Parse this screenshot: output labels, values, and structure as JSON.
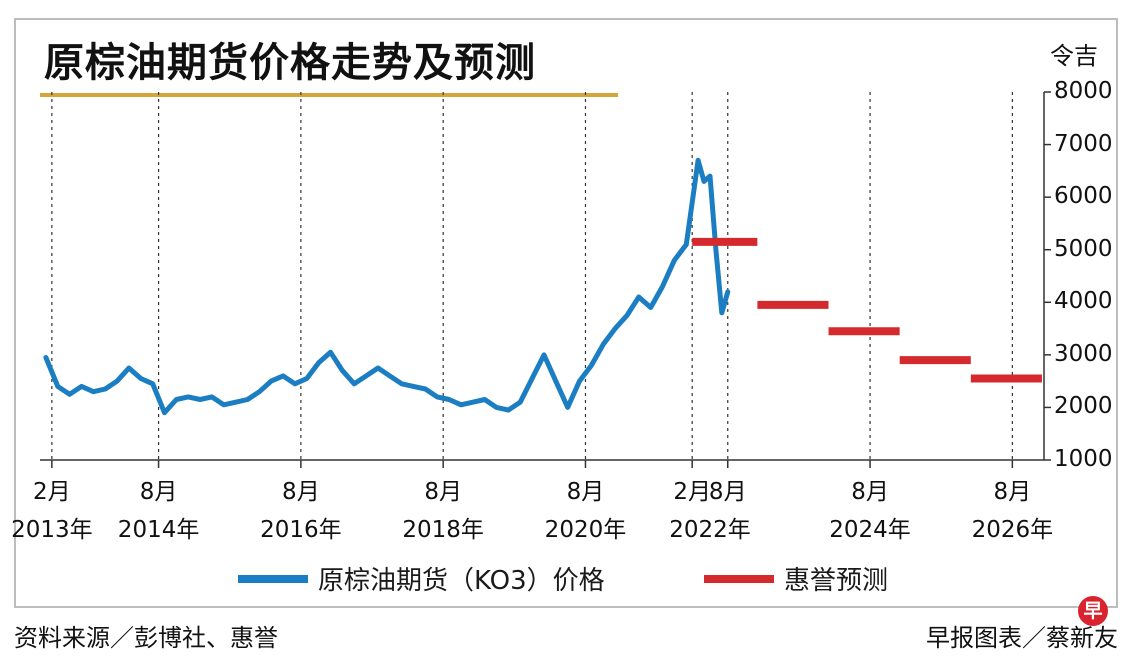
{
  "chart_data": {
    "type": "line",
    "title": "原棕油期货价格走势及预测",
    "unit": "令吉",
    "ylim": [
      1000,
      8000
    ],
    "yticks": [
      1000,
      2000,
      3000,
      4000,
      5000,
      6000,
      7000,
      8000
    ],
    "ytick_labels": [
      "1000",
      "2000",
      "3000",
      "4000",
      "5000",
      "6000",
      "7000",
      "8000"
    ],
    "xlim": [
      "2012-12",
      "2027-01"
    ],
    "xticks": [
      {
        "date": "2013-02",
        "top": "2月",
        "bottom": "2013年"
      },
      {
        "date": "2014-08",
        "top": "8月",
        "bottom": "2014年"
      },
      {
        "date": "2016-08",
        "top": "8月",
        "bottom": "2016年"
      },
      {
        "date": "2018-08",
        "top": "8月",
        "bottom": "2018年"
      },
      {
        "date": "2020-08",
        "top": "8月",
        "bottom": "2020年"
      },
      {
        "date": "2022-02",
        "top": "2月",
        "bottom": ""
      },
      {
        "date": "2022-08",
        "top": "8月",
        "bottom": "2022年"
      },
      {
        "date": "2024-08",
        "top": "8月",
        "bottom": "2024年"
      },
      {
        "date": "2026-08",
        "top": "8月",
        "bottom": "2026年"
      }
    ],
    "x_caption_2022": "2022年",
    "grid": "vertical dashed lines at each labeled tick",
    "legend": "bottom",
    "series": [
      {
        "name": "原棕油期货（KO3）价格",
        "color": "#1b7ec2",
        "points": [
          [
            "2013-01",
            2950
          ],
          [
            "2013-03",
            2400
          ],
          [
            "2013-05",
            2250
          ],
          [
            "2013-07",
            2400
          ],
          [
            "2013-09",
            2300
          ],
          [
            "2013-11",
            2350
          ],
          [
            "2014-01",
            2500
          ],
          [
            "2014-03",
            2750
          ],
          [
            "2014-05",
            2550
          ],
          [
            "2014-07",
            2450
          ],
          [
            "2014-09",
            1900
          ],
          [
            "2014-11",
            2150
          ],
          [
            "2015-01",
            2200
          ],
          [
            "2015-03",
            2150
          ],
          [
            "2015-05",
            2200
          ],
          [
            "2015-07",
            2050
          ],
          [
            "2015-09",
            2100
          ],
          [
            "2015-11",
            2150
          ],
          [
            "2016-01",
            2300
          ],
          [
            "2016-03",
            2500
          ],
          [
            "2016-05",
            2600
          ],
          [
            "2016-07",
            2450
          ],
          [
            "2016-09",
            2550
          ],
          [
            "2016-11",
            2850
          ],
          [
            "2017-01",
            3050
          ],
          [
            "2017-03",
            2700
          ],
          [
            "2017-05",
            2450
          ],
          [
            "2017-07",
            2600
          ],
          [
            "2017-09",
            2750
          ],
          [
            "2017-11",
            2600
          ],
          [
            "2018-01",
            2450
          ],
          [
            "2018-03",
            2400
          ],
          [
            "2018-05",
            2350
          ],
          [
            "2018-07",
            2200
          ],
          [
            "2018-09",
            2150
          ],
          [
            "2018-11",
            2050
          ],
          [
            "2019-01",
            2100
          ],
          [
            "2019-03",
            2150
          ],
          [
            "2019-05",
            2000
          ],
          [
            "2019-07",
            1950
          ],
          [
            "2019-09",
            2100
          ],
          [
            "2019-11",
            2550
          ],
          [
            "2020-01",
            3000
          ],
          [
            "2020-03",
            2500
          ],
          [
            "2020-05",
            2000
          ],
          [
            "2020-07",
            2500
          ],
          [
            "2020-09",
            2800
          ],
          [
            "2020-11",
            3200
          ],
          [
            "2021-01",
            3500
          ],
          [
            "2021-03",
            3750
          ],
          [
            "2021-05",
            4100
          ],
          [
            "2021-07",
            3900
          ],
          [
            "2021-09",
            4300
          ],
          [
            "2021-11",
            4800
          ],
          [
            "2022-01",
            5100
          ],
          [
            "2022-03",
            6700
          ],
          [
            "2022-04",
            6300
          ],
          [
            "2022-05",
            6400
          ],
          [
            "2022-06",
            5000
          ],
          [
            "2022-07",
            3800
          ],
          [
            "2022-08",
            4200
          ]
        ]
      },
      {
        "name": "惠誉预测",
        "color": "#d42a2e",
        "segments": [
          {
            "from": "2022-02",
            "to": "2022-12",
            "value": 5150
          },
          {
            "from": "2023-01",
            "to": "2023-12",
            "value": 3950
          },
          {
            "from": "2024-01",
            "to": "2024-12",
            "value": 3450
          },
          {
            "from": "2025-01",
            "to": "2025-12",
            "value": 2900
          },
          {
            "from": "2026-01",
            "to": "2026-12",
            "value": 2550
          }
        ]
      }
    ]
  },
  "legend": {
    "price_label": "原棕油期货（KO3）价格",
    "forecast_label": "惠誉预测"
  },
  "footer": {
    "source": "资料来源／彭博社、惠誉",
    "credit": "早报图表／蔡新友",
    "logo_text": "早"
  },
  "colors": {
    "price": "#1b7ec2",
    "forecast": "#d42a2e",
    "title_rule": "#d6a53a"
  }
}
